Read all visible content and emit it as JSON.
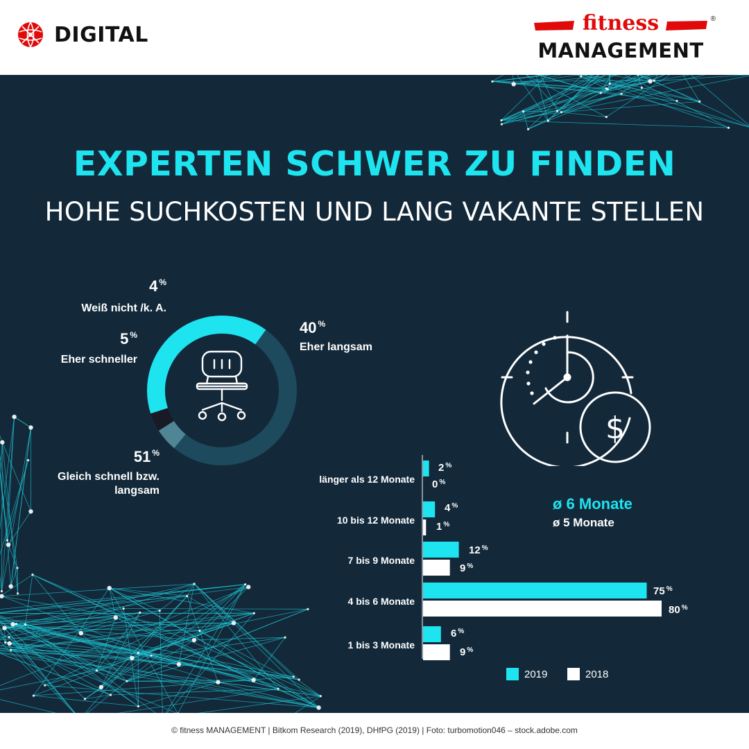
{
  "header": {
    "digital_label": "DIGITAL",
    "brand_top": "fitness",
    "brand_bottom": "MANAGEMENT",
    "brand_mark": "®"
  },
  "title": "EXPERTEN SCHWER ZU FINDEN",
  "subtitle": "HOHE SUCHKOSTEN UND LANG VAKANTE STELLEN",
  "footer": "© fitness MANAGEMENT  |  Bitkom Research (2019), DHfPG (2019)  |  Foto: turbomotion046 – stock.adobe.com",
  "colors": {
    "accent": "#1ee4f0",
    "background": "#13293a",
    "donut_main": "#1d4a5c",
    "donut_light": "#4f8594",
    "donut_dark": "#1a1a26",
    "brand_red": "#e10a0a"
  },
  "icons": {
    "donut_center": "office-chair-icon",
    "clock": "clock-dollar-icon",
    "logo": "globe-icon"
  },
  "chart_data": [
    {
      "type": "pie",
      "title": "",
      "slices": [
        {
          "label": "Eher langsam",
          "value": 40,
          "color": "#1ee4f0"
        },
        {
          "label": "Gleich schnell bzw. langsam",
          "value": 51,
          "color": "#1d4a5c"
        },
        {
          "label": "Eher schneller",
          "value": 5,
          "color": "#4f8594"
        },
        {
          "label": "Weiß nicht /k. A.",
          "value": 4,
          "color": "#1a1a26"
        }
      ],
      "unit": "%"
    },
    {
      "type": "bar",
      "orientation": "horizontal",
      "title": "",
      "categories": [
        "länger als 12 Monate",
        "10 bis 12 Monate",
        "7 bis 9 Monate",
        "4 bis 6 Monate",
        "1 bis 3 Monate"
      ],
      "series": [
        {
          "name": "2019",
          "values": [
            2,
            4,
            12,
            75,
            6
          ],
          "color": "#1ee4f0"
        },
        {
          "name": "2018",
          "values": [
            0,
            1,
            9,
            80,
            9
          ],
          "color": "#ffffff"
        }
      ],
      "unit": "%",
      "averages": [
        {
          "series": "2019",
          "text": "ø 6 Monate"
        },
        {
          "series": "2018",
          "text": "ø 5 Monate"
        }
      ],
      "legend": "bottom"
    }
  ]
}
